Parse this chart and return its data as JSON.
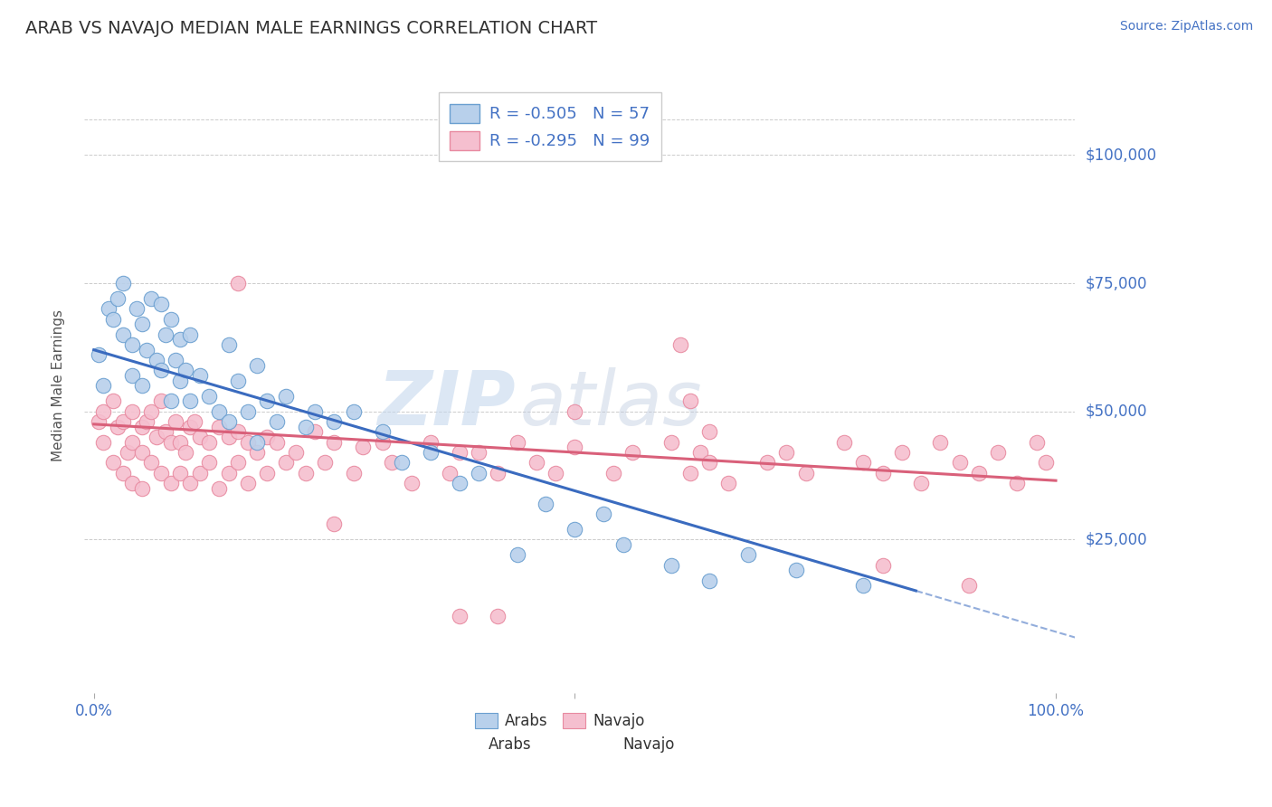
{
  "title": "ARAB VS NAVAJO MEDIAN MALE EARNINGS CORRELATION CHART",
  "source": "Source: ZipAtlas.com",
  "ylabel": "Median Male Earnings",
  "xlim": [
    -0.01,
    1.02
  ],
  "ylim": [
    -5000,
    115000
  ],
  "arab_color": "#b8d0eb",
  "navajo_color": "#f5bfcf",
  "arab_edge_color": "#6a9fd0",
  "navajo_edge_color": "#e88aa0",
  "arab_line_color": "#3a6bbf",
  "navajo_line_color": "#d9607a",
  "arab_R": -0.505,
  "arab_N": 57,
  "navajo_R": -0.295,
  "navajo_N": 99,
  "title_color": "#333333",
  "tick_color": "#4472c4",
  "watermark_zip_color": "#c5d8ee",
  "watermark_atlas_color": "#c0cce0",
  "background_color": "#ffffff",
  "grid_color": "#cccccc",
  "arab_intercept": 62000,
  "arab_slope": -55000,
  "navajo_intercept": 47500,
  "navajo_slope": -11000,
  "arab_x": [
    0.005,
    0.01,
    0.015,
    0.02,
    0.025,
    0.03,
    0.03,
    0.04,
    0.04,
    0.045,
    0.05,
    0.05,
    0.055,
    0.06,
    0.065,
    0.07,
    0.07,
    0.075,
    0.08,
    0.08,
    0.085,
    0.09,
    0.09,
    0.095,
    0.1,
    0.1,
    0.11,
    0.12,
    0.13,
    0.14,
    0.14,
    0.15,
    0.16,
    0.17,
    0.17,
    0.18,
    0.19,
    0.2,
    0.22,
    0.23,
    0.25,
    0.27,
    0.3,
    0.32,
    0.35,
    0.38,
    0.4,
    0.44,
    0.47,
    0.5,
    0.53,
    0.55,
    0.6,
    0.64,
    0.68,
    0.73,
    0.8
  ],
  "arab_y": [
    61000,
    55000,
    70000,
    68000,
    72000,
    65000,
    75000,
    63000,
    57000,
    70000,
    67000,
    55000,
    62000,
    72000,
    60000,
    71000,
    58000,
    65000,
    68000,
    52000,
    60000,
    56000,
    64000,
    58000,
    65000,
    52000,
    57000,
    53000,
    50000,
    63000,
    48000,
    56000,
    50000,
    59000,
    44000,
    52000,
    48000,
    53000,
    47000,
    50000,
    48000,
    50000,
    46000,
    40000,
    42000,
    36000,
    38000,
    22000,
    32000,
    27000,
    30000,
    24000,
    20000,
    17000,
    22000,
    19000,
    16000
  ],
  "navajo_x": [
    0.005,
    0.01,
    0.01,
    0.02,
    0.02,
    0.025,
    0.03,
    0.03,
    0.035,
    0.04,
    0.04,
    0.04,
    0.05,
    0.05,
    0.05,
    0.055,
    0.06,
    0.06,
    0.065,
    0.07,
    0.07,
    0.075,
    0.08,
    0.08,
    0.085,
    0.09,
    0.09,
    0.095,
    0.1,
    0.1,
    0.105,
    0.11,
    0.11,
    0.12,
    0.12,
    0.13,
    0.13,
    0.14,
    0.14,
    0.15,
    0.15,
    0.16,
    0.16,
    0.17,
    0.18,
    0.18,
    0.19,
    0.2,
    0.21,
    0.22,
    0.23,
    0.24,
    0.25,
    0.27,
    0.28,
    0.3,
    0.31,
    0.33,
    0.35,
    0.37,
    0.38,
    0.4,
    0.42,
    0.44,
    0.46,
    0.48,
    0.5,
    0.54,
    0.56,
    0.6,
    0.62,
    0.63,
    0.64,
    0.66,
    0.7,
    0.72,
    0.74,
    0.78,
    0.8,
    0.82,
    0.84,
    0.86,
    0.88,
    0.9,
    0.92,
    0.94,
    0.96,
    0.98,
    0.99,
    0.61,
    0.42,
    0.15,
    0.5,
    0.64,
    0.82,
    0.91,
    0.62,
    0.38,
    0.25
  ],
  "navajo_y": [
    48000,
    50000,
    44000,
    52000,
    40000,
    47000,
    48000,
    38000,
    42000,
    50000,
    44000,
    36000,
    47000,
    42000,
    35000,
    48000,
    50000,
    40000,
    45000,
    52000,
    38000,
    46000,
    44000,
    36000,
    48000,
    44000,
    38000,
    42000,
    47000,
    36000,
    48000,
    45000,
    38000,
    44000,
    40000,
    47000,
    35000,
    45000,
    38000,
    46000,
    40000,
    44000,
    36000,
    42000,
    45000,
    38000,
    44000,
    40000,
    42000,
    38000,
    46000,
    40000,
    44000,
    38000,
    43000,
    44000,
    40000,
    36000,
    44000,
    38000,
    42000,
    42000,
    38000,
    44000,
    40000,
    38000,
    43000,
    38000,
    42000,
    44000,
    38000,
    42000,
    40000,
    36000,
    40000,
    42000,
    38000,
    44000,
    40000,
    38000,
    42000,
    36000,
    44000,
    40000,
    38000,
    42000,
    36000,
    44000,
    40000,
    63000,
    10000,
    75000,
    50000,
    46000,
    20000,
    16000,
    52000,
    10000,
    28000
  ]
}
